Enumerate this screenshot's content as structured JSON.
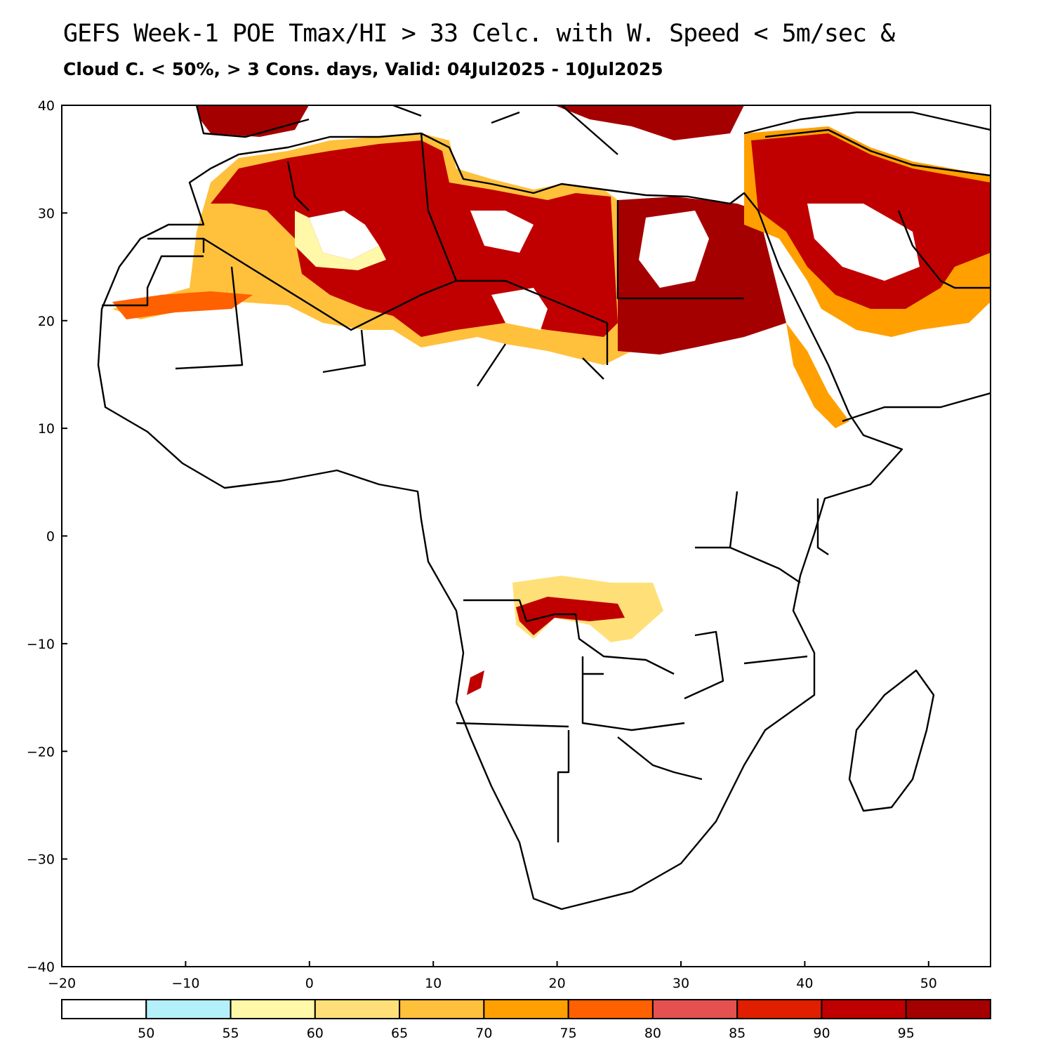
{
  "title": "GEFS Week-1 POE Tmax/HI > 33 Celc. with W. Speed < 5m/sec &",
  "subtitle": "Cloud C. < 50%, > 3 Cons. days, Valid: 04Jul2025 - 10Jul2025",
  "axes": {
    "x_ticks": [
      "−20",
      "−10",
      "0",
      "10",
      "20",
      "30",
      "40",
      "50"
    ],
    "y_ticks": [
      "40",
      "30",
      "20",
      "10",
      "0",
      "−10",
      "−20",
      "−30",
      "−40"
    ],
    "x_range": [
      -20,
      55
    ],
    "y_range": [
      -40,
      40
    ]
  },
  "colorbar": {
    "colors": [
      "#ffffff",
      "#b4f0fa",
      "#fff8a8",
      "#ffe078",
      "#ffc03c",
      "#ffa000",
      "#ff6000",
      "#e55050",
      "#e01e00",
      "#c00000",
      "#a50000"
    ],
    "labels": [
      "50",
      "55",
      "60",
      "65",
      "70",
      "75",
      "80",
      "85",
      "90",
      "95"
    ]
  }
}
